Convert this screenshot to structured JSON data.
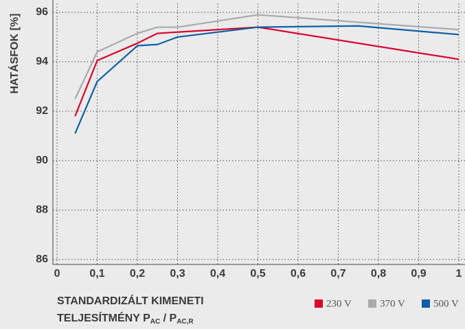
{
  "chart_data": {
    "type": "line",
    "y_label": "HATÁSFOK [%]",
    "x_label": {
      "line1": "STANDARDIZÁLT KIMENETI",
      "line2": "TELJESÍTMÉNY P",
      "sub1": "AC",
      "mid": " / P",
      "sub2": "AC,R"
    },
    "xlim": [
      -0.0103,
      1.0154
    ],
    "ylim": [
      85.8,
      96.36
    ],
    "xticks": [
      0,
      {
        "value": 0.1,
        "label": "0,1"
      },
      {
        "value": 0.2,
        "label": "0,2"
      },
      {
        "value": 0.3,
        "label": "0,3"
      },
      {
        "value": 0.4,
        "label": "0,4"
      },
      {
        "value": 0.5,
        "label": "0,5"
      },
      {
        "value": 0.6,
        "label": "0,6"
      },
      {
        "value": 0.7,
        "label": "0,7"
      },
      {
        "value": 0.8,
        "label": "0,8"
      },
      {
        "value": 0.9,
        "label": "0,9"
      },
      1
    ],
    "yticks": [
      86,
      88,
      90,
      92,
      94,
      96
    ],
    "grid": true,
    "legend": "bottom-right",
    "series": [
      {
        "name": "230 V",
        "color": "#d9042b",
        "x": [
          0.045,
          0.1,
          0.2,
          0.25,
          0.3,
          0.5,
          1
        ],
        "values": [
          91.8,
          94.05,
          94.75,
          95.15,
          95.2,
          95.4,
          94.1
        ]
      },
      {
        "name": "370 V",
        "color": "#a7abae",
        "x": [
          0.045,
          0.1,
          0.2,
          0.25,
          0.3,
          0.5,
          0.75,
          1
        ],
        "values": [
          92.5,
          94.4,
          95.15,
          95.4,
          95.4,
          95.9,
          95.6,
          95.3
        ]
      },
      {
        "name": "500 V",
        "color": "#0d5fa6",
        "x": [
          0.045,
          0.1,
          0.2,
          0.25,
          0.3,
          0.5,
          0.75,
          1
        ],
        "values": [
          91.1,
          93.2,
          94.65,
          94.7,
          95.0,
          95.4,
          95.45,
          95.1
        ]
      }
    ]
  }
}
